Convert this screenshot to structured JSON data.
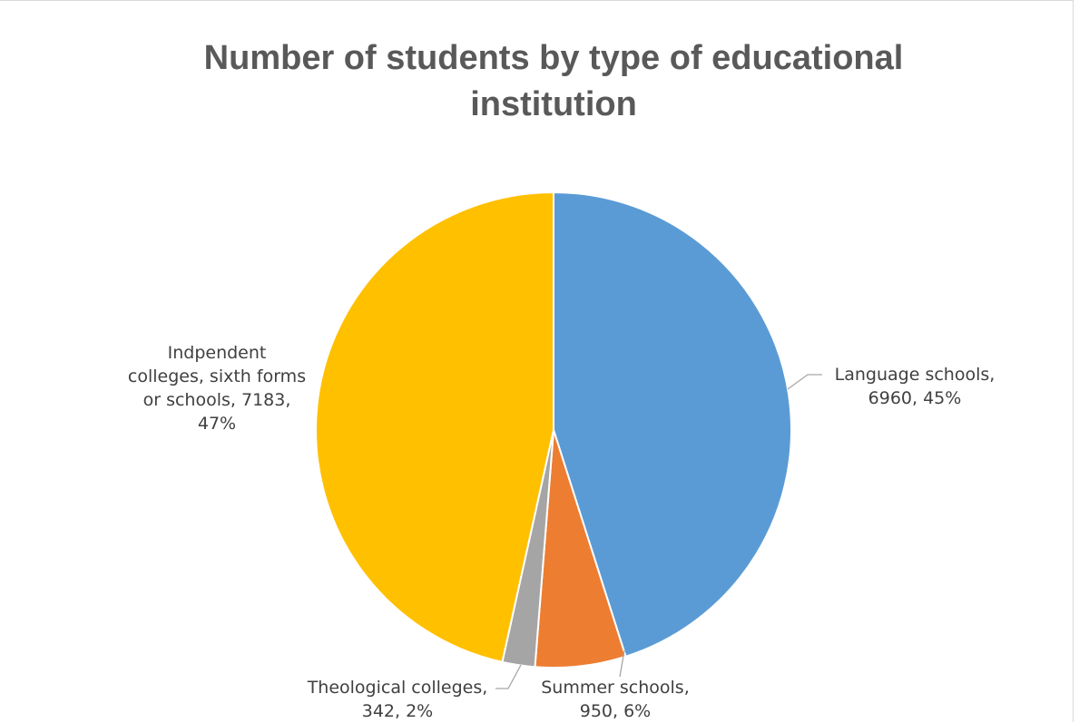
{
  "chart_data": {
    "type": "pie",
    "title_lines": [
      "Number of students by type of educational",
      "institution"
    ],
    "legend": "none",
    "slices": [
      {
        "label": "Language schools",
        "value": 6960,
        "percent": "45%",
        "color": "#5B9BD5",
        "label_lines": [
          "Language schools,",
          "6960, 45%"
        ]
      },
      {
        "label": "Summer schools",
        "value": 950,
        "percent": "6%",
        "color": "#ED7D31",
        "label_lines": [
          "Summer schools,",
          "950, 6%"
        ]
      },
      {
        "label": "Theological colleges",
        "value": 342,
        "percent": "2%",
        "color": "#A5A5A5",
        "label_lines": [
          "Theological colleges,",
          "342, 2%"
        ]
      },
      {
        "label": "Indpendent colleges, sixth forms or schools",
        "value": 7183,
        "percent": "47%",
        "color": "#FFC000",
        "label_lines": [
          "Indpendent",
          "colleges, sixth forms",
          "or schools, 7183,",
          "47%"
        ]
      }
    ]
  }
}
